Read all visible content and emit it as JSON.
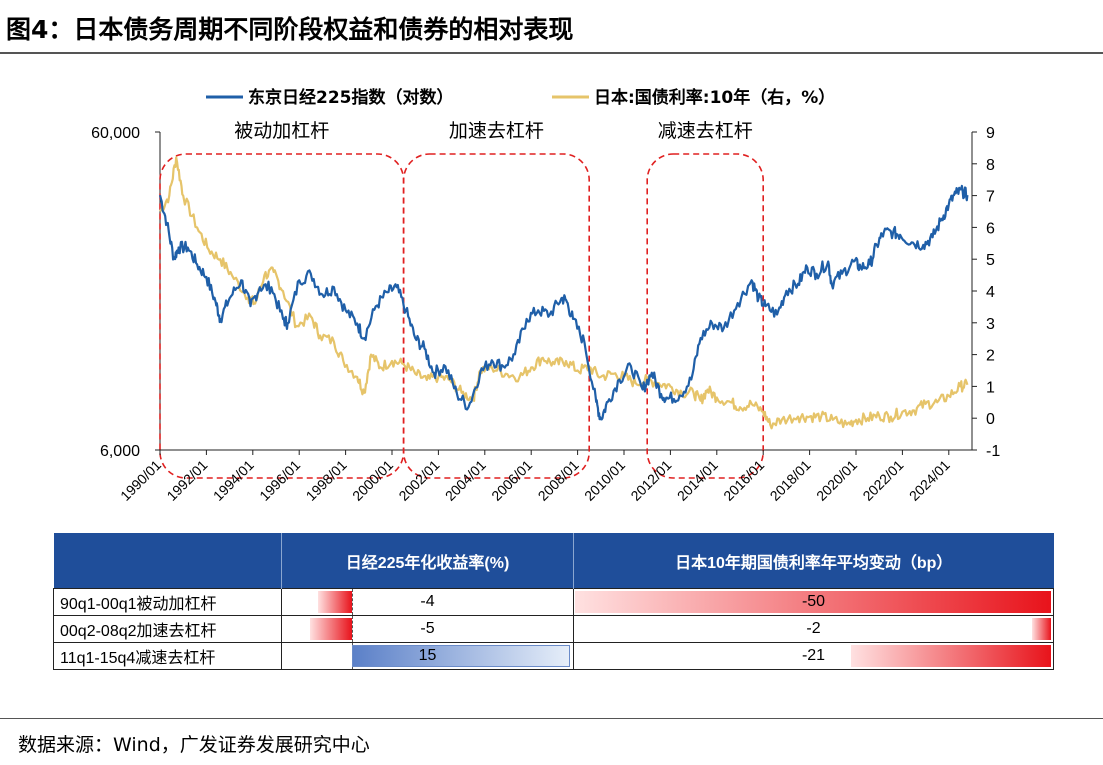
{
  "title": "图4：日本债务周期不同阶段权益和债券的相对表现",
  "source": "数据来源：Wind，广发证券发展研究中心",
  "colors": {
    "nikkei": "#1f5fa8",
    "jgb": "#e6c46a",
    "phase_box": "#e02020",
    "header_bg": "#1f4e9a"
  },
  "chart_data": {
    "type": "line",
    "legend": [
      "东京日经225指数（对数）",
      "日本:国债利率:10年（右，%）"
    ],
    "left_axis": {
      "scale": "log",
      "ticks": [
        "60,000",
        "6,000"
      ],
      "range": [
        6000,
        60000
      ]
    },
    "right_axis": {
      "ticks": [
        "9",
        "8",
        "7",
        "6",
        "5",
        "4",
        "3",
        "2",
        "1",
        "0",
        "-1"
      ],
      "range": [
        -1,
        9
      ]
    },
    "x_ticks": [
      "1990/01",
      "1992/01",
      "1994/01",
      "1996/01",
      "1998/01",
      "2000/01",
      "2002/01",
      "2004/01",
      "2006/01",
      "2008/01",
      "2010/01",
      "2012/01",
      "2014/01",
      "2016/01",
      "2018/01",
      "2020/01",
      "2022/01",
      "2024/01"
    ],
    "phases": [
      {
        "label": "被动加杠杆",
        "start": 1990.0,
        "end": 2000.5
      },
      {
        "label": "加速去杠杆",
        "start": 2000.5,
        "end": 2008.5
      },
      {
        "label": "减速去杠杆",
        "start": 2011.0,
        "end": 2016.0
      }
    ],
    "series": [
      {
        "name": "东京日经225指数（对数）",
        "axis": "left",
        "x": [
          1990.0,
          1990.3,
          1990.6,
          1990.8,
          1991.2,
          1991.6,
          1992.0,
          1992.4,
          1992.6,
          1993.0,
          1993.5,
          1993.9,
          1994.3,
          1994.8,
          1995.3,
          1995.5,
          1996.0,
          1996.5,
          1997.0,
          1997.5,
          1998.0,
          1998.5,
          1998.8,
          1999.3,
          1999.8,
          2000.2,
          2000.6,
          2001.0,
          2001.4,
          2001.8,
          2002.3,
          2002.8,
          2003.3,
          2003.8,
          2004.3,
          2004.8,
          2005.3,
          2005.8,
          2006.3,
          2006.8,
          2007.3,
          2007.5,
          2007.8,
          2008.3,
          2008.8,
          2009.0,
          2009.3,
          2009.8,
          2010.3,
          2010.8,
          2011.2,
          2011.6,
          2011.9,
          2012.4,
          2012.9,
          2013.3,
          2013.8,
          2014.3,
          2014.9,
          2015.5,
          2015.8,
          2016.1,
          2016.6,
          2017.0,
          2017.5,
          2017.9,
          2018.3,
          2018.8,
          2018.95,
          2019.4,
          2019.9,
          2020.2,
          2020.6,
          2020.9,
          2021.2,
          2021.6,
          2021.9,
          2022.4,
          2022.9,
          2023.3,
          2023.7,
          2024.0,
          2024.3,
          2024.6,
          2024.8
        ],
        "values": [
          38000,
          31000,
          24000,
          26000,
          26000,
          23000,
          21000,
          17500,
          15500,
          18000,
          20500,
          17000,
          19500,
          19500,
          15500,
          15000,
          20500,
          21500,
          18500,
          19500,
          16500,
          15000,
          13500,
          17000,
          18800,
          19500,
          16500,
          13500,
          12500,
          10500,
          11000,
          9000,
          8200,
          10500,
          11500,
          11000,
          12000,
          15500,
          16500,
          16000,
          18000,
          17800,
          15500,
          13000,
          8500,
          7500,
          8500,
          10000,
          11000,
          9300,
          10500,
          9000,
          8700,
          8900,
          10000,
          13500,
          15000,
          14500,
          17400,
          20500,
          18000,
          17000,
          16000,
          19000,
          20000,
          22500,
          21500,
          23500,
          20000,
          21500,
          23500,
          22500,
          23000,
          26500,
          29000,
          29000,
          28500,
          27000,
          26500,
          28000,
          32000,
          35500,
          38500,
          39000,
          38000
        ]
      },
      {
        "name": "日本:国债利率:10年（右，%）",
        "axis": "right",
        "x": [
          1990.0,
          1990.4,
          1990.7,
          1991.0,
          1991.6,
          1992.1,
          1992.6,
          1993.1,
          1993.8,
          1994.1,
          1994.5,
          1994.9,
          1995.3,
          1995.9,
          1996.5,
          1996.9,
          1997.5,
          1997.9,
          1998.5,
          1998.8,
          1999.1,
          1999.5,
          2000.0,
          2000.5,
          2001.0,
          2001.5,
          2002.0,
          2002.5,
          2003.0,
          2003.5,
          2003.8,
          2004.3,
          2004.9,
          2005.5,
          2006.0,
          2006.5,
          2007.0,
          2007.5,
          2008.0,
          2008.5,
          2009.0,
          2009.5,
          2010.0,
          2010.5,
          2011.0,
          2011.5,
          2012.0,
          2012.5,
          2013.0,
          2013.3,
          2013.6,
          2014.0,
          2014.6,
          2015.0,
          2015.5,
          2016.0,
          2016.3,
          2016.8,
          2017.5,
          2018.0,
          2018.5,
          2019.0,
          2019.6,
          2020.0,
          2020.5,
          2021.0,
          2021.5,
          2022.0,
          2022.5,
          2023.0,
          2023.5,
          2024.0,
          2024.5,
          2024.8
        ],
        "values": [
          6.5,
          7.0,
          8.2,
          7.0,
          6.0,
          5.3,
          5.0,
          4.5,
          3.8,
          3.6,
          4.5,
          4.6,
          4.0,
          2.9,
          3.2,
          2.6,
          2.4,
          1.8,
          1.3,
          0.8,
          2.0,
          1.6,
          1.8,
          1.7,
          1.4,
          1.2,
          1.3,
          1.2,
          0.8,
          0.6,
          1.5,
          1.6,
          1.4,
          1.3,
          1.6,
          1.9,
          1.7,
          1.8,
          1.5,
          1.6,
          1.3,
          1.4,
          1.3,
          1.1,
          1.2,
          1.1,
          1.0,
          0.8,
          0.8,
          0.55,
          0.9,
          0.65,
          0.5,
          0.35,
          0.45,
          0.2,
          -0.2,
          -0.05,
          0.05,
          0.05,
          0.05,
          -0.05,
          -0.2,
          -0.05,
          0.0,
          0.08,
          0.05,
          0.2,
          0.25,
          0.45,
          0.5,
          0.7,
          1.0,
          1.05
        ]
      }
    ]
  },
  "table": {
    "headers": [
      "",
      "日经225年化收益率(%)",
      "日本10年期国债利率年平均变动（bp）"
    ],
    "rows": [
      {
        "label": "90q1-00q1被动加杠杆",
        "equity": -4,
        "bond": -50,
        "equity_text": "-4",
        "bond_text": "-50"
      },
      {
        "label": "00q2-08q2加速去杠杆",
        "equity": -5,
        "bond": -2,
        "equity_text": "-5",
        "bond_text": "-2"
      },
      {
        "label": "11q1-15q4减速去杠杆",
        "equity": 15,
        "bond": -21,
        "equity_text": "15",
        "bond_text": "-21"
      }
    ]
  }
}
